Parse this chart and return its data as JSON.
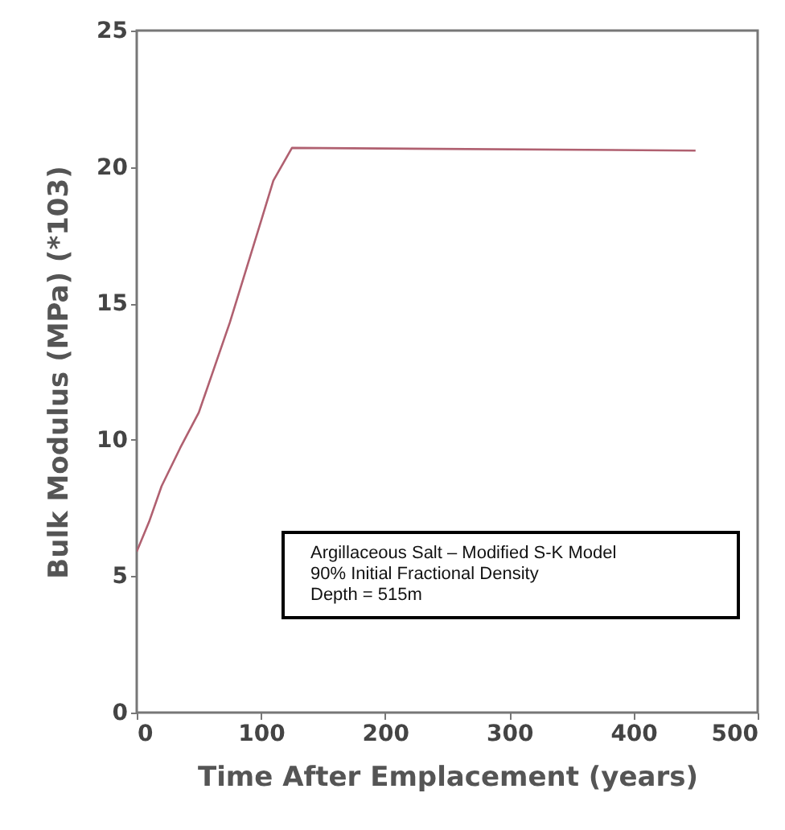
{
  "chart_data": {
    "type": "line",
    "xlabel": "Time After Emplacement (years)",
    "ylabel": "Bulk Modulus (MPa) (*103)",
    "x": [
      0,
      10,
      20,
      35,
      50,
      75,
      100,
      110,
      125,
      450
    ],
    "series": [
      {
        "color": "#b06070",
        "values": [
          5.9,
          7.0,
          8.3,
          9.7,
          11.0,
          14.3,
          18.0,
          19.5,
          20.7,
          20.6
        ]
      }
    ],
    "xlim": [
      0,
      500
    ],
    "xticks": [
      0,
      100,
      200,
      300,
      400,
      500
    ],
    "ylim": [
      0,
      25
    ],
    "yticks": [
      0,
      5,
      10,
      15,
      20,
      25
    ],
    "grid": false,
    "annotations": [
      "Argillaceous Salt – Modified S-K Model",
      "90% Initial Fractional Density",
      "Depth = 515m"
    ]
  }
}
